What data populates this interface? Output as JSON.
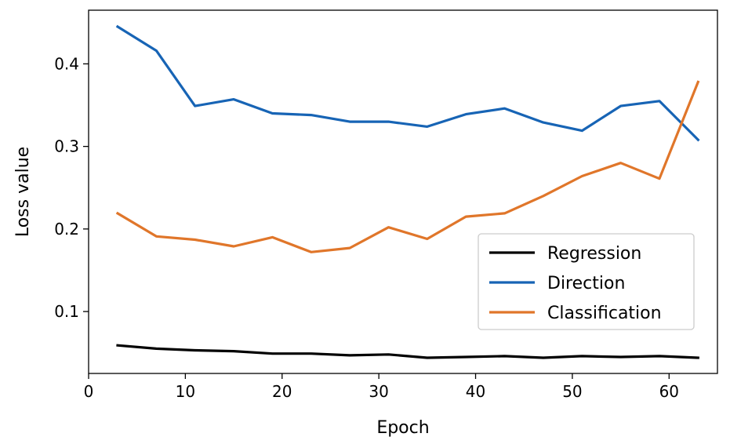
{
  "chart_data": {
    "type": "line",
    "title": "",
    "xlabel": "Epoch",
    "ylabel": "Loss value",
    "xlim": [
      0,
      65
    ],
    "ylim": [
      0.025,
      0.465
    ],
    "xticks": [
      0,
      10,
      20,
      30,
      40,
      50,
      60
    ],
    "yticks": [
      0.1,
      0.2,
      0.3,
      0.4
    ],
    "xtick_labels": [
      "0",
      "10",
      "20",
      "30",
      "40",
      "50",
      "60"
    ],
    "ytick_labels": [
      "0.1",
      "0.2",
      "0.3",
      "0.4"
    ],
    "grid": false,
    "legend_position": "lower-right",
    "x": [
      3,
      7,
      11,
      15,
      19,
      23,
      27,
      31,
      35,
      39,
      43,
      47,
      51,
      55,
      59,
      63
    ],
    "series": [
      {
        "name": "Regression",
        "color": "#000000",
        "values": [
          0.059,
          0.055,
          0.053,
          0.052,
          0.049,
          0.049,
          0.047,
          0.048,
          0.044,
          0.045,
          0.046,
          0.044,
          0.046,
          0.045,
          0.046,
          0.044
        ]
      },
      {
        "name": "Direction",
        "color": "#1764b5",
        "values": [
          0.445,
          0.416,
          0.349,
          0.357,
          0.34,
          0.338,
          0.33,
          0.33,
          0.324,
          0.339,
          0.346,
          0.329,
          0.319,
          0.349,
          0.355,
          0.308
        ]
      },
      {
        "name": "Classification",
        "color": "#e0762a",
        "values": [
          0.219,
          0.191,
          0.187,
          0.179,
          0.19,
          0.172,
          0.177,
          0.202,
          0.188,
          0.215,
          0.219,
          0.24,
          0.264,
          0.28,
          0.261,
          0.378
        ]
      }
    ]
  }
}
